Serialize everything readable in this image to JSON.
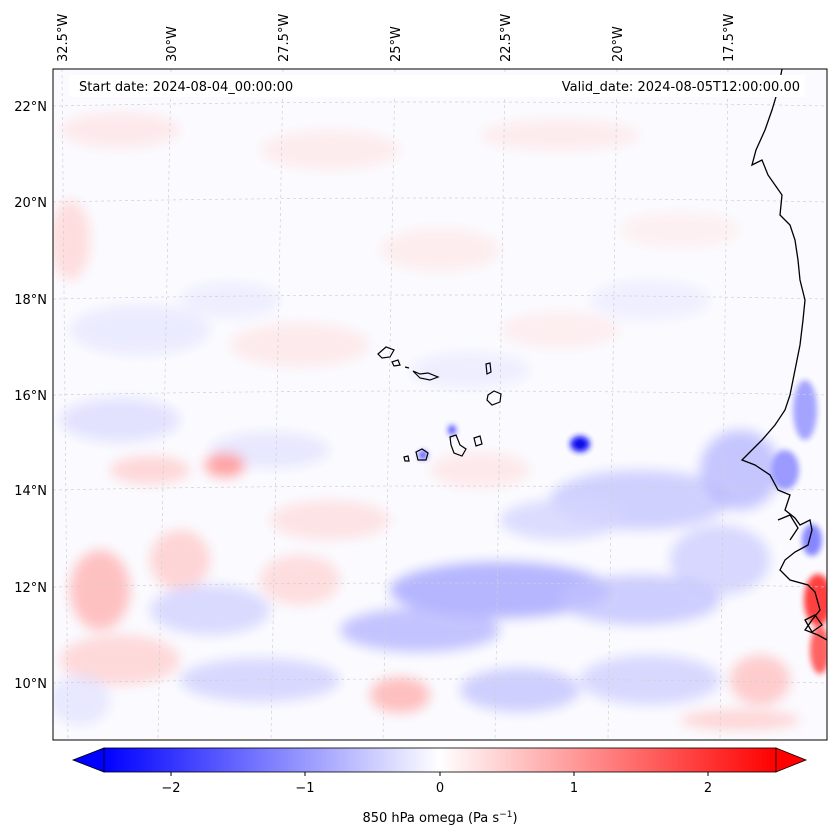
{
  "map": {
    "start_date": "Start date: 2024-08-04_00:00:00",
    "valid_date": "Valid_date: 2024-08-05T12:00:00.00",
    "lon_labels": [
      "32.5°W",
      "30°W",
      "27.5°W",
      "25°W",
      "22.5°W",
      "20°W",
      "17.5°W"
    ],
    "lat_labels": [
      "22°N",
      "20°N",
      "18°N",
      "16°N",
      "14°N",
      "12°N",
      "10°N"
    ],
    "variable": "850 hPa omega",
    "units": "Pa s",
    "units_exponent": "−1",
    "gridlines": true,
    "colormap": "bwr",
    "colors": {
      "negative": "#0000ff",
      "zero": "#ffffff",
      "positive": "#ff0000",
      "coastline": "#000000"
    }
  },
  "colorbar": {
    "ticks": [
      "−2",
      "−1",
      "0",
      "1",
      "2"
    ],
    "min": -2.6,
    "max": 2.6,
    "extend": "both"
  }
}
